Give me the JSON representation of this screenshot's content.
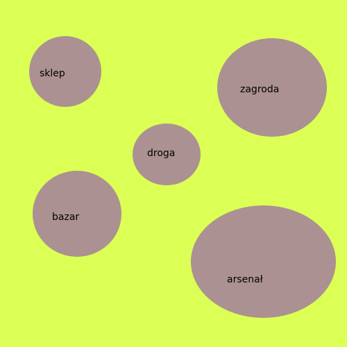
{
  "colors": {
    "background": "#dcff55",
    "bubble_fill": "#ab9191",
    "label_text": "#000000"
  },
  "bubbles": [
    {
      "label": "sklep"
    },
    {
      "label": "zagroda"
    },
    {
      "label": "droga"
    },
    {
      "label": "bazar"
    },
    {
      "label": "arsenał"
    }
  ]
}
